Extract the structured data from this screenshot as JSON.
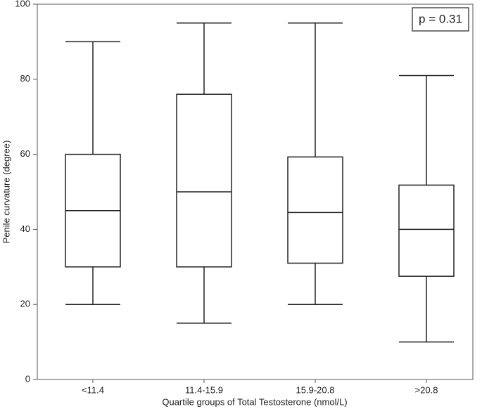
{
  "chart_data": {
    "type": "box",
    "y_label": "Penile curvature (degree)",
    "x_label": "Quartile groups of Total Testosterone (nmol/L)",
    "annotation": "p = 0.31",
    "categories": [
      "<11.4",
      "11.4-15.9",
      "15.9-20.8",
      ">20.8"
    ],
    "boxes": [
      {
        "min": 20,
        "q1": 30,
        "median": 45,
        "q3": 60,
        "max": 90
      },
      {
        "min": 15,
        "q1": 30,
        "median": 50,
        "q3": 76,
        "max": 95
      },
      {
        "min": 20,
        "q1": 31,
        "median": 44.5,
        "q3": 59.3,
        "max": 95
      },
      {
        "min": 10,
        "q1": 27.5,
        "median": 40,
        "q3": 51.8,
        "max": 81
      }
    ],
    "color": "#222222",
    "ylim": [
      0,
      100
    ],
    "yticks": [
      0,
      20,
      40,
      60,
      80,
      100
    ],
    "grid": false
  }
}
